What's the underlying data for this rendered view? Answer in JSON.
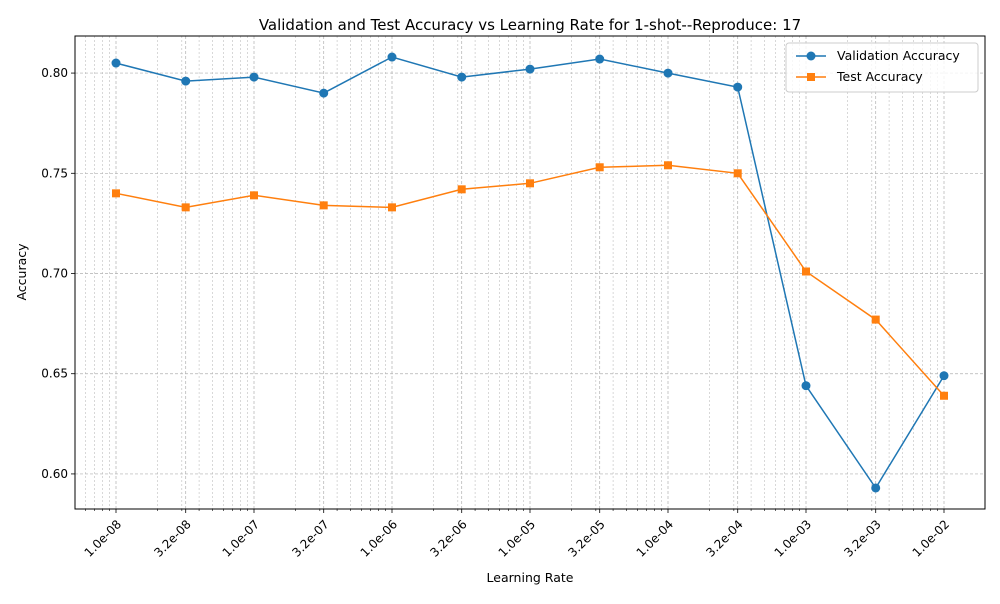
{
  "chart_data": {
    "type": "line",
    "title": "Validation and Test Accuracy vs Learning Rate for 1-shot--Reproduce: 17",
    "xlabel": "Learning Rate",
    "ylabel": "Accuracy",
    "x_scale": "log",
    "x": [
      1e-08,
      3.2e-08,
      1e-07,
      3.2e-07,
      1e-06,
      3.2e-06,
      1e-05,
      3.2e-05,
      0.0001,
      0.00032,
      0.001,
      0.0032,
      0.01
    ],
    "x_tick_labels": [
      "1.0e-08",
      "3.2e-08",
      "1.0e-07",
      "3.2e-07",
      "1.0e-06",
      "3.2e-06",
      "1.0e-05",
      "3.2e-05",
      "1.0e-04",
      "3.2e-04",
      "1.0e-03",
      "3.2e-03",
      "1.0e-02"
    ],
    "y_ticks": [
      "0.60",
      "0.65",
      "0.70",
      "0.75",
      "0.80"
    ],
    "ylim": [
      0.5825,
      0.8185
    ],
    "grid": true,
    "legend_position": "top-right",
    "series": [
      {
        "name": "Validation Accuracy",
        "color": "#1f77b4",
        "marker": "circle",
        "values": [
          0.805,
          0.796,
          0.798,
          0.79,
          0.808,
          0.798,
          0.802,
          0.807,
          0.8,
          0.793,
          0.644,
          0.593,
          0.649
        ]
      },
      {
        "name": "Test Accuracy",
        "color": "#ff7f0e",
        "marker": "square",
        "values": [
          0.74,
          0.733,
          0.739,
          0.734,
          0.733,
          0.742,
          0.745,
          0.753,
          0.754,
          0.75,
          0.701,
          0.677,
          0.639
        ]
      }
    ]
  }
}
